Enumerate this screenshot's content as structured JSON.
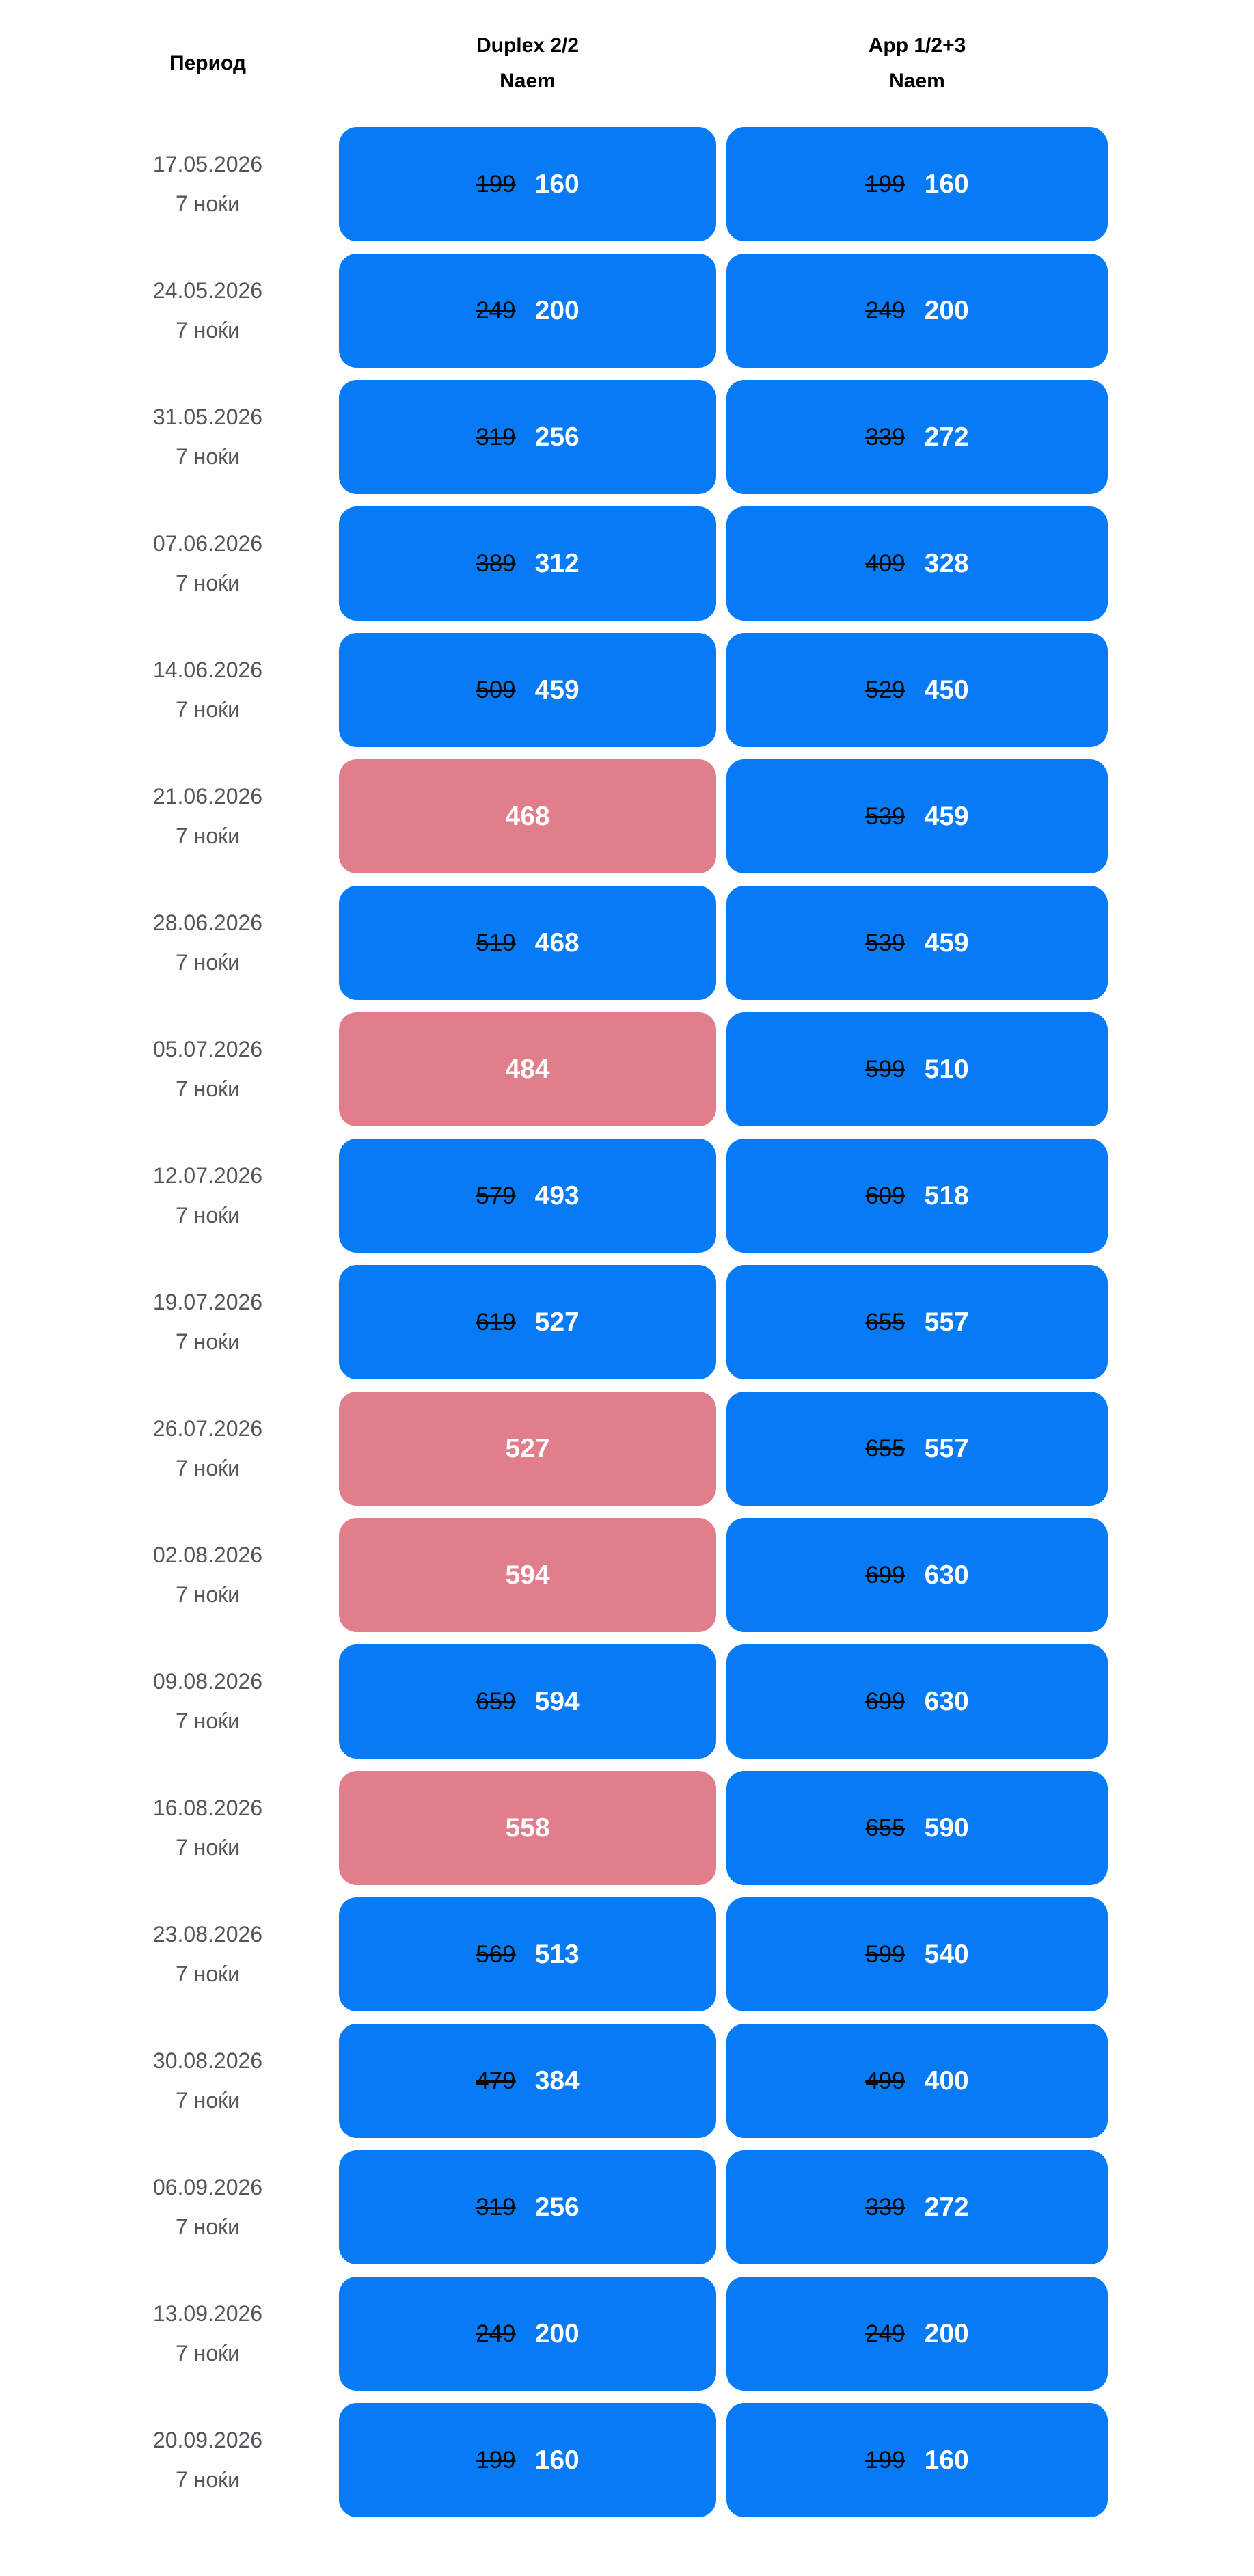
{
  "header": {
    "period": "Период",
    "columns": [
      {
        "title": "Duplex 2/2",
        "subtitle": "Naem"
      },
      {
        "title": "App 1/2+3",
        "subtitle": "Naem"
      }
    ]
  },
  "colors": {
    "discount_button_bg": "#077BF5",
    "plain_button_bg": "#E17E8B",
    "old_price_text": "#0A0A0B",
    "new_price_text": "#FFFFFF",
    "period_text": "#545559"
  },
  "rows": [
    {
      "date": "17.05.2026",
      "nights": "7 ноќи",
      "cells": [
        {
          "type": "discount",
          "old": "199",
          "price": "160"
        },
        {
          "type": "discount",
          "old": "199",
          "price": "160"
        }
      ]
    },
    {
      "date": "24.05.2026",
      "nights": "7 ноќи",
      "cells": [
        {
          "type": "discount",
          "old": "249",
          "price": "200"
        },
        {
          "type": "discount",
          "old": "249",
          "price": "200"
        }
      ]
    },
    {
      "date": "31.05.2026",
      "nights": "7 ноќи",
      "cells": [
        {
          "type": "discount",
          "old": "319",
          "price": "256"
        },
        {
          "type": "discount",
          "old": "339",
          "price": "272"
        }
      ]
    },
    {
      "date": "07.06.2026",
      "nights": "7 ноќи",
      "cells": [
        {
          "type": "discount",
          "old": "389",
          "price": "312"
        },
        {
          "type": "discount",
          "old": "409",
          "price": "328"
        }
      ]
    },
    {
      "date": "14.06.2026",
      "nights": "7 ноќи",
      "cells": [
        {
          "type": "discount",
          "old": "509",
          "price": "459"
        },
        {
          "type": "discount",
          "old": "529",
          "price": "450"
        }
      ]
    },
    {
      "date": "21.06.2026",
      "nights": "7 ноќи",
      "cells": [
        {
          "type": "plain",
          "price": "468"
        },
        {
          "type": "discount",
          "old": "539",
          "price": "459"
        }
      ]
    },
    {
      "date": "28.06.2026",
      "nights": "7 ноќи",
      "cells": [
        {
          "type": "discount",
          "old": "519",
          "price": "468"
        },
        {
          "type": "discount",
          "old": "539",
          "price": "459"
        }
      ]
    },
    {
      "date": "05.07.2026",
      "nights": "7 ноќи",
      "cells": [
        {
          "type": "plain",
          "price": "484"
        },
        {
          "type": "discount",
          "old": "599",
          "price": "510"
        }
      ]
    },
    {
      "date": "12.07.2026",
      "nights": "7 ноќи",
      "cells": [
        {
          "type": "discount",
          "old": "579",
          "price": "493"
        },
        {
          "type": "discount",
          "old": "609",
          "price": "518"
        }
      ]
    },
    {
      "date": "19.07.2026",
      "nights": "7 ноќи",
      "cells": [
        {
          "type": "discount",
          "old": "619",
          "price": "527"
        },
        {
          "type": "discount",
          "old": "655",
          "price": "557"
        }
      ]
    },
    {
      "date": "26.07.2026",
      "nights": "7 ноќи",
      "cells": [
        {
          "type": "plain",
          "price": "527"
        },
        {
          "type": "discount",
          "old": "655",
          "price": "557"
        }
      ]
    },
    {
      "date": "02.08.2026",
      "nights": "7 ноќи",
      "cells": [
        {
          "type": "plain",
          "price": "594"
        },
        {
          "type": "discount",
          "old": "699",
          "price": "630"
        }
      ]
    },
    {
      "date": "09.08.2026",
      "nights": "7 ноќи",
      "cells": [
        {
          "type": "discount",
          "old": "659",
          "price": "594"
        },
        {
          "type": "discount",
          "old": "699",
          "price": "630"
        }
      ]
    },
    {
      "date": "16.08.2026",
      "nights": "7 ноќи",
      "cells": [
        {
          "type": "plain",
          "price": "558"
        },
        {
          "type": "discount",
          "old": "655",
          "price": "590"
        }
      ]
    },
    {
      "date": "23.08.2026",
      "nights": "7 ноќи",
      "cells": [
        {
          "type": "discount",
          "old": "569",
          "price": "513"
        },
        {
          "type": "discount",
          "old": "599",
          "price": "540"
        }
      ]
    },
    {
      "date": "30.08.2026",
      "nights": "7 ноќи",
      "cells": [
        {
          "type": "discount",
          "old": "479",
          "price": "384"
        },
        {
          "type": "discount",
          "old": "499",
          "price": "400"
        }
      ]
    },
    {
      "date": "06.09.2026",
      "nights": "7 ноќи",
      "cells": [
        {
          "type": "discount",
          "old": "319",
          "price": "256"
        },
        {
          "type": "discount",
          "old": "339",
          "price": "272"
        }
      ]
    },
    {
      "date": "13.09.2026",
      "nights": "7 ноќи",
      "cells": [
        {
          "type": "discount",
          "old": "249",
          "price": "200"
        },
        {
          "type": "discount",
          "old": "249",
          "price": "200"
        }
      ]
    },
    {
      "date": "20.09.2026",
      "nights": "7 ноќи",
      "cells": [
        {
          "type": "discount",
          "old": "199",
          "price": "160"
        },
        {
          "type": "discount",
          "old": "199",
          "price": "160"
        }
      ]
    }
  ]
}
